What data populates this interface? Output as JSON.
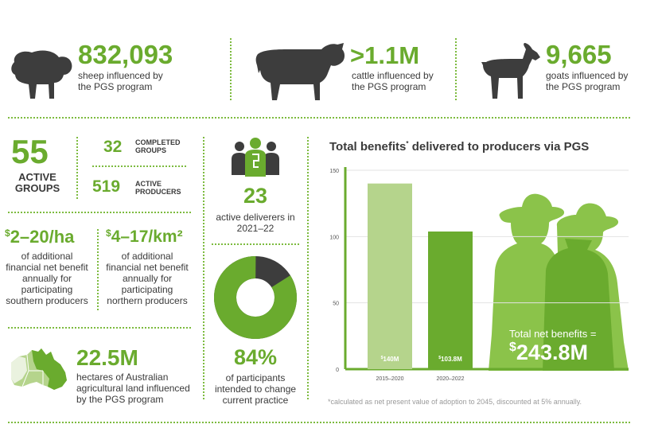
{
  "livestock": [
    {
      "value": "832,093",
      "caption": "sheep influenced by the PGS program",
      "icon": "sheep-icon"
    },
    {
      "value": ">1.1M",
      "caption": "cattle influenced by the PGS program",
      "icon": "cattle-icon"
    },
    {
      "value": "9,665",
      "caption": "goats influenced by the PGS program",
      "icon": "goat-icon"
    }
  ],
  "groups": {
    "active_value": "55",
    "active_label": "ACTIVE GROUPS",
    "completed_value": "32",
    "completed_label": "COMPLETED GROUPS",
    "producers_value": "519",
    "producers_label": "ACTIVE PRODUCERS"
  },
  "deliverers": {
    "value": "23",
    "caption": "active deliverers in 2021–22",
    "icon": "people-group-icon"
  },
  "southern": {
    "prefix": "$",
    "value": "2–20/ha",
    "caption": "of additional financial net benefit annually for participating southern producers"
  },
  "northern": {
    "prefix": "$",
    "value": "4–17/km²",
    "caption": "of additional financial net benefit annually for participating northern producers"
  },
  "participants": {
    "value": "84%",
    "caption": "of participants intended to change current practice",
    "percent": 84
  },
  "land": {
    "value": "22.5M",
    "caption": "hectares of Australian agricultural land influenced by the PGS program",
    "icon": "australia-map-icon"
  },
  "chart_title_main": "Total benefits",
  "chart_title_mark": "*",
  "chart_title_rest": " delivered to producers via PGS",
  "footnote": "*calculated as net present value of adoption to 2045, discounted at 5% annually.",
  "total": {
    "label": "Total net benefits =",
    "prefix": "$",
    "value": "243.8M"
  },
  "colors": {
    "green": "#6aab2e",
    "light_green": "#b5d48c",
    "dark": "#3a3a3a",
    "donut_dark": "#3d3d3d"
  },
  "chart_data": {
    "type": "bar",
    "categories": [
      "2015–2020",
      "2020–2022"
    ],
    "values": [
      140,
      103.8
    ],
    "data_labels": [
      {
        "prefix": "$",
        "text": "140M"
      },
      {
        "prefix": "$",
        "text": "103.8M"
      }
    ],
    "yticks": [
      "150",
      "100",
      "50",
      "0"
    ],
    "ytick_values": [
      150,
      100,
      50,
      0
    ],
    "ylim": [
      0,
      150
    ],
    "bar_colors": [
      "#b5d48c",
      "#6aab2e"
    ],
    "grid": true
  }
}
